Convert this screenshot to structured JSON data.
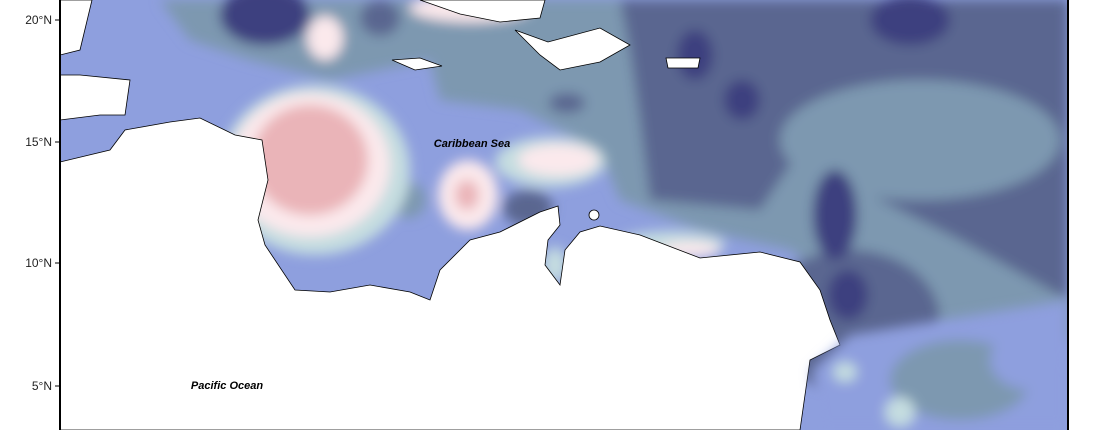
{
  "axis": {
    "y_ticks": [
      "20°N",
      "15°N",
      "10°N",
      "5°N"
    ]
  },
  "labels": {
    "caribbean_sea": "Caribbean Sea",
    "pacific_ocean": "Pacific Ocean"
  }
}
